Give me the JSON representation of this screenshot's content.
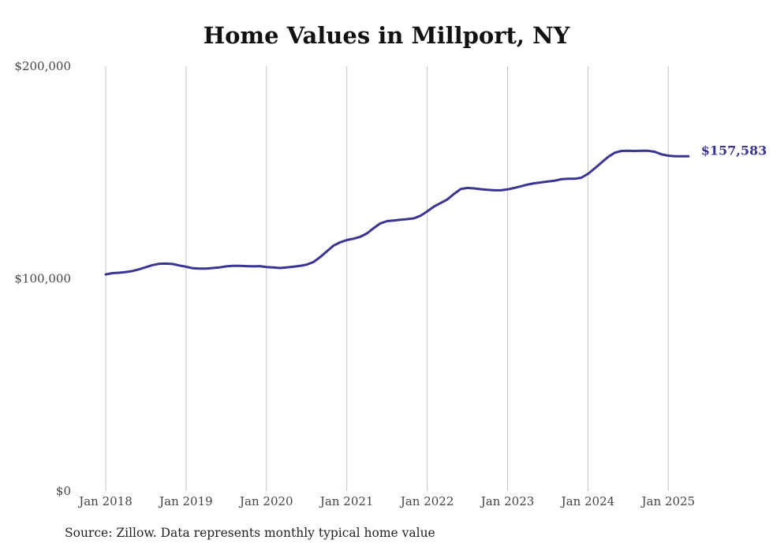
{
  "chart_data": {
    "type": "line",
    "title": "Home Values in Millport, NY",
    "xlabel": "",
    "ylabel": "",
    "ylim": [
      0,
      200000
    ],
    "y_ticks": [
      {
        "value": 0,
        "label": "$0"
      },
      {
        "value": 100000,
        "label": "$100,000"
      },
      {
        "value": 200000,
        "label": "$200,000"
      }
    ],
    "x_ticks": [
      {
        "value": "2018-01",
        "label": "Jan 2018"
      },
      {
        "value": "2019-01",
        "label": "Jan 2019"
      },
      {
        "value": "2020-01",
        "label": "Jan 2020"
      },
      {
        "value": "2021-01",
        "label": "Jan 2021"
      },
      {
        "value": "2022-01",
        "label": "Jan 2022"
      },
      {
        "value": "2023-01",
        "label": "Jan 2023"
      },
      {
        "value": "2024-01",
        "label": "Jan 2024"
      },
      {
        "value": "2025-01",
        "label": "Jan 2025"
      }
    ],
    "grid": "vertical",
    "line_color": "#3a3591",
    "end_label": "$157,583",
    "series": [
      {
        "x": [
          "2018-01",
          "2018-02",
          "2018-03",
          "2018-04",
          "2018-05",
          "2018-06",
          "2018-07",
          "2018-08",
          "2018-09",
          "2018-10",
          "2018-11",
          "2018-12",
          "2019-01",
          "2019-02",
          "2019-03",
          "2019-04",
          "2019-05",
          "2019-06",
          "2019-07",
          "2019-08",
          "2019-09",
          "2019-10",
          "2019-11",
          "2019-12",
          "2020-01",
          "2020-02",
          "2020-03",
          "2020-04",
          "2020-05",
          "2020-06",
          "2020-07",
          "2020-08",
          "2020-09",
          "2020-10",
          "2020-11",
          "2020-12",
          "2021-01",
          "2021-02",
          "2021-03",
          "2021-04",
          "2021-05",
          "2021-06",
          "2021-07",
          "2021-08",
          "2021-09",
          "2021-10",
          "2021-11",
          "2021-12",
          "2022-01",
          "2022-02",
          "2022-03",
          "2022-04",
          "2022-05",
          "2022-06",
          "2022-07",
          "2022-08",
          "2022-09",
          "2022-10",
          "2022-11",
          "2022-12",
          "2023-01",
          "2023-02",
          "2023-03",
          "2023-04",
          "2023-05",
          "2023-06",
          "2023-07",
          "2023-08",
          "2023-09",
          "2023-10",
          "2023-11",
          "2023-12",
          "2024-01",
          "2024-02",
          "2024-03",
          "2024-04",
          "2024-05",
          "2024-06",
          "2024-07",
          "2024-08",
          "2024-09",
          "2024-10",
          "2024-11",
          "2024-12",
          "2025-01",
          "2025-02",
          "2025-03",
          "2025-04"
        ],
        "values": [
          102000,
          102600,
          102800,
          103100,
          103600,
          104400,
          105400,
          106400,
          107000,
          107100,
          106900,
          106200,
          105600,
          104900,
          104700,
          104700,
          105000,
          105300,
          105800,
          106000,
          106000,
          105900,
          105800,
          105900,
          105500,
          105300,
          105000,
          105300,
          105600,
          106000,
          106600,
          107800,
          110100,
          112800,
          115500,
          117100,
          118200,
          118800,
          119700,
          121300,
          123800,
          126000,
          127100,
          127400,
          127700,
          128000,
          128400,
          129600,
          131700,
          133900,
          135600,
          137300,
          139900,
          142200,
          142700,
          142500,
          142100,
          141800,
          141600,
          141600,
          142000,
          142700,
          143500,
          144300,
          144900,
          145300,
          145700,
          146100,
          146800,
          147000,
          147000,
          147500,
          149300,
          151900,
          154600,
          157300,
          159300,
          160100,
          160200,
          160100,
          160200,
          160200,
          159700,
          158500,
          157900,
          157583,
          157583,
          157583
        ]
      }
    ]
  },
  "source": "Source: Zillow. Data represents monthly typical home value"
}
